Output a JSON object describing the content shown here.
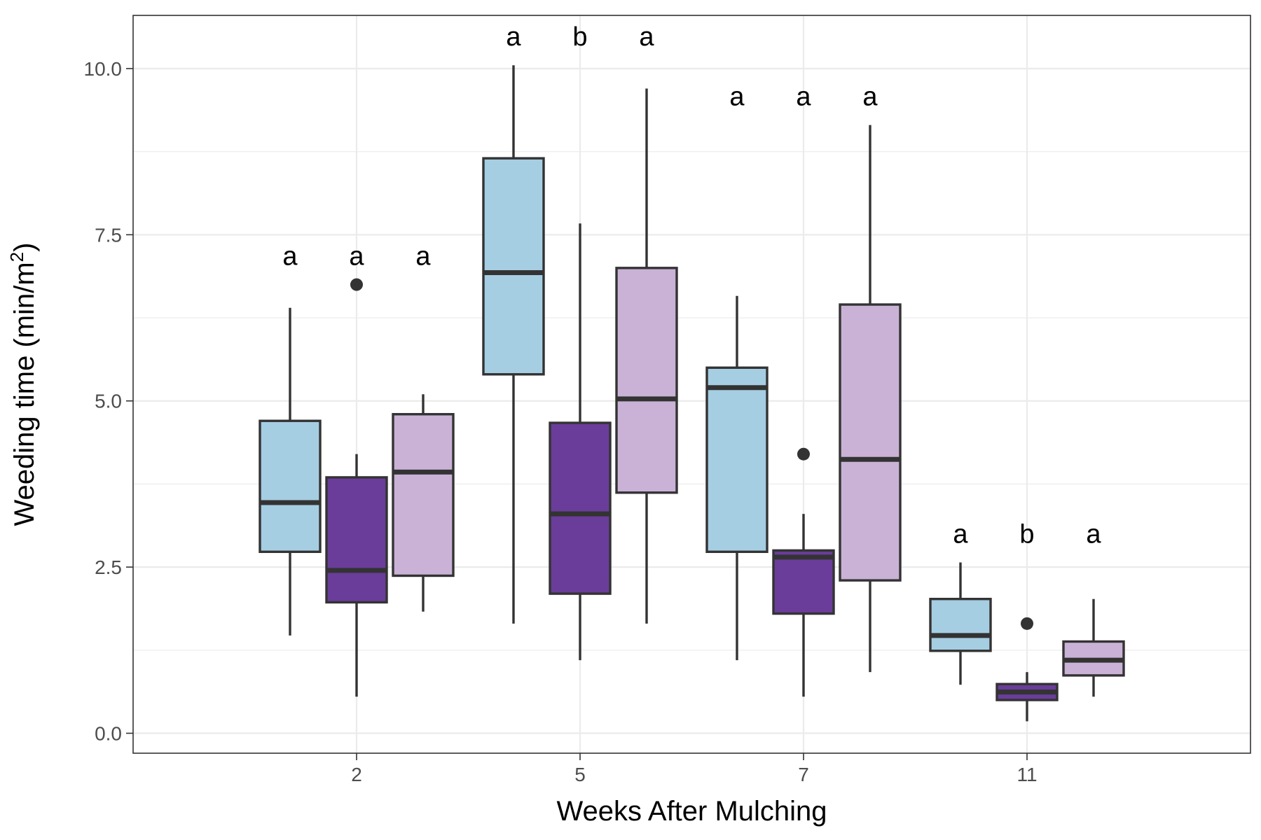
{
  "chart_data": {
    "type": "boxplot",
    "title": "",
    "xlabel": "Weeks After Mulching",
    "ylabel": {
      "main": "Weeding time  (min/m",
      "superscript": "2",
      "close": ")"
    },
    "categories": [
      "2",
      "5",
      "7",
      "11"
    ],
    "ylim": [
      -0.3,
      10.8
    ],
    "yticks": [
      "0.0",
      "2.5",
      "5.0",
      "7.5",
      "10.0"
    ],
    "grid": true,
    "legend": "none",
    "series_colors": [
      "#a6cee3",
      "#6a3d9a",
      "#cab2d6"
    ],
    "outline_color": "#333333",
    "groups": [
      {
        "category": "2",
        "boxes": [
          {
            "min": 1.47,
            "q1": 2.73,
            "median": 3.47,
            "q3": 4.7,
            "max": 6.4,
            "outliers": [],
            "letter": "a"
          },
          {
            "min": 0.55,
            "q1": 1.97,
            "median": 2.45,
            "q3": 3.85,
            "max": 4.2,
            "outliers": [
              6.75
            ],
            "letter": "a"
          },
          {
            "min": 1.83,
            "q1": 2.37,
            "median": 3.93,
            "q3": 4.8,
            "max": 5.1,
            "outliers": [],
            "letter": "a"
          }
        ]
      },
      {
        "category": "5",
        "boxes": [
          {
            "min": 1.65,
            "q1": 5.4,
            "median": 6.93,
            "q3": 8.65,
            "max": 10.05,
            "outliers": [],
            "letter": "a"
          },
          {
            "min": 1.1,
            "q1": 2.1,
            "median": 3.3,
            "q3": 4.67,
            "max": 7.67,
            "outliers": [],
            "letter": "b"
          },
          {
            "min": 1.65,
            "q1": 3.62,
            "median": 5.03,
            "q3": 7.0,
            "max": 9.7,
            "outliers": [],
            "letter": "a"
          }
        ]
      },
      {
        "category": "7",
        "boxes": [
          {
            "min": 1.1,
            "q1": 2.73,
            "median": 5.2,
            "q3": 5.5,
            "max": 6.58,
            "outliers": [],
            "letter": "a"
          },
          {
            "min": 0.55,
            "q1": 1.8,
            "median": 2.65,
            "q3": 2.75,
            "max": 3.3,
            "outliers": [
              4.2
            ],
            "letter": "a"
          },
          {
            "min": 0.92,
            "q1": 2.3,
            "median": 4.12,
            "q3": 6.45,
            "max": 9.15,
            "outliers": [],
            "letter": "a"
          }
        ]
      },
      {
        "category": "11",
        "boxes": [
          {
            "min": 0.73,
            "q1": 1.24,
            "median": 1.47,
            "q3": 2.02,
            "max": 2.57,
            "outliers": [],
            "letter": "a"
          },
          {
            "min": 0.18,
            "q1": 0.5,
            "median": 0.62,
            "q3": 0.74,
            "max": 0.92,
            "outliers": [
              1.65
            ],
            "letter": "b"
          },
          {
            "min": 0.55,
            "q1": 0.87,
            "median": 1.1,
            "q3": 1.38,
            "max": 2.02,
            "outliers": [],
            "letter": "a"
          }
        ]
      }
    ]
  }
}
